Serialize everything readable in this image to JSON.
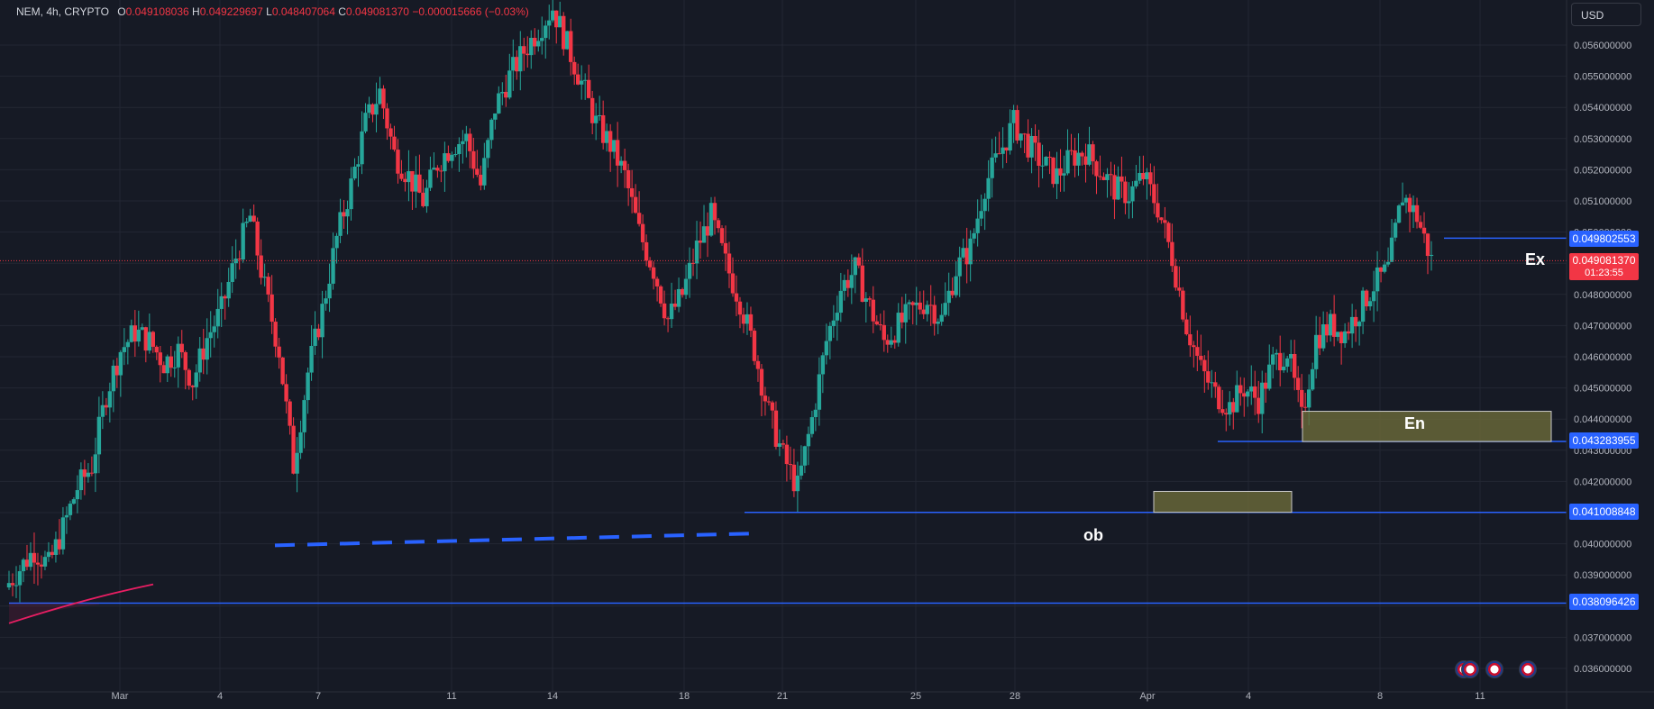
{
  "header": {
    "symbol": "NEM, 4h, CRYPTO",
    "open_label": "O",
    "open": "0.049108036",
    "high_label": "H",
    "high": "0.049229697",
    "low_label": "L",
    "low": "0.048407064",
    "close_label": "C",
    "close": "0.049081370",
    "change": "−0.000015666 (−0.03%)"
  },
  "currency_selector": "USD",
  "chart_data": {
    "type": "candlestick",
    "timeframe": "4h",
    "y_axis": {
      "ylim": [
        0.0355,
        0.0569
      ],
      "ticks": [
        "0.056000000",
        "0.055000000",
        "0.054000000",
        "0.053000000",
        "0.052000000",
        "0.051000000",
        "0.050000000",
        "0.049000000",
        "0.048000000",
        "0.047000000",
        "0.046000000",
        "0.045000000",
        "0.044000000",
        "0.043000000",
        "0.042000000",
        "0.041000000",
        "0.040000000",
        "0.039000000",
        "0.038000000",
        "0.037000000",
        "0.036000000"
      ]
    },
    "x_axis": {
      "ticks": [
        "Mar",
        "4",
        "7",
        "11",
        "14",
        "18",
        "21",
        "25",
        "28",
        "Apr",
        "4",
        "8",
        "11"
      ]
    },
    "grid": true,
    "price_path": [
      0.0386,
      0.0392,
      0.0398,
      0.0393,
      0.0405,
      0.0418,
      0.0425,
      0.0448,
      0.0462,
      0.0468,
      0.0465,
      0.0458,
      0.0462,
      0.0452,
      0.0466,
      0.0475,
      0.0492,
      0.0505,
      0.0482,
      0.0462,
      0.0425,
      0.0455,
      0.0475,
      0.0498,
      0.0515,
      0.0535,
      0.0545,
      0.0525,
      0.0518,
      0.051,
      0.0522,
      0.0528,
      0.053,
      0.0515,
      0.054,
      0.055,
      0.0558,
      0.0565,
      0.0572,
      0.056,
      0.0548,
      0.0535,
      0.0528,
      0.0518,
      0.05,
      0.0488,
      0.0472,
      0.048,
      0.0495,
      0.0505,
      0.049,
      0.0478,
      0.0462,
      0.0442,
      0.0428,
      0.0418,
      0.044,
      0.0465,
      0.0482,
      0.0488,
      0.0476,
      0.0465,
      0.047,
      0.0475,
      0.0478,
      0.0472,
      0.0488,
      0.0495,
      0.0515,
      0.0525,
      0.0535,
      0.0528,
      0.0522,
      0.0518,
      0.0524,
      0.0526,
      0.052,
      0.0514,
      0.0512,
      0.0518,
      0.0508,
      0.0492,
      0.047,
      0.0456,
      0.0448,
      0.0444,
      0.045,
      0.0446,
      0.0458,
      0.0462,
      0.044,
      0.0466,
      0.047,
      0.0468,
      0.0475,
      0.0483,
      0.0488,
      0.0512,
      0.0505,
      0.0491
    ],
    "levels": [
      {
        "value": "0.049802553",
        "price": 0.0498026
      },
      {
        "value": "0.049081370",
        "price": 0.0490814,
        "countdown": "01:23:55",
        "current": true
      },
      {
        "value": "0.043283955",
        "price": 0.043284
      },
      {
        "value": "0.041008848",
        "price": 0.0410088
      },
      {
        "value": "0.038096426",
        "price": 0.0380964
      }
    ],
    "annotations": [
      {
        "label": "Ex",
        "kind": "text"
      },
      {
        "label": "En",
        "kind": "zone"
      },
      {
        "label": "ob",
        "kind": "zone"
      }
    ],
    "colors": {
      "up": "#26a69a",
      "down": "#f23645",
      "level": "#2962ff",
      "zone": "#6b6a3a",
      "curve": "#e91e63",
      "bg": "#161a25",
      "grid": "#232733"
    }
  }
}
